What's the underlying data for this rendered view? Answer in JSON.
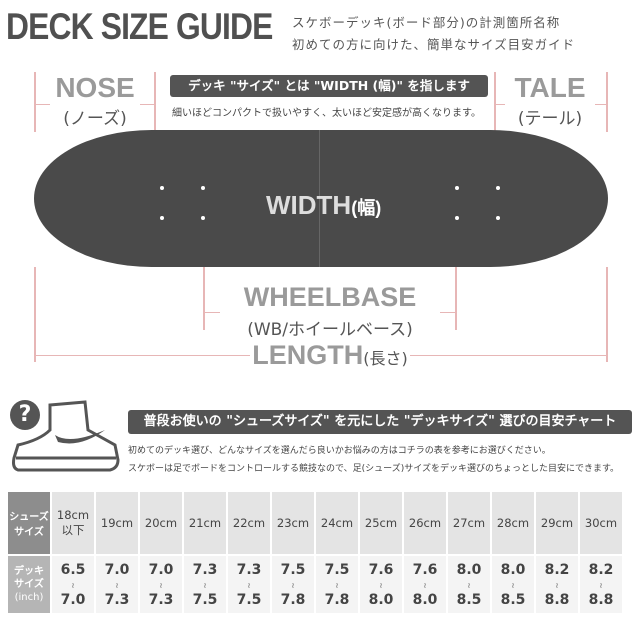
{
  "title": "DECK SIZE GUIDE",
  "handnote": [
    "スケボーデッキ(ボード部分)の計測箇所名称",
    "初めての方に向けた、簡単なサイズ目安ガイド"
  ],
  "nose": {
    "en": "NOSE",
    "jp": "(ノーズ)"
  },
  "tale": {
    "en": "TALE",
    "jp": "(テール)"
  },
  "width_banner": "デッキ \"サイズ\" とは \"WIDTH (幅)\" を指します",
  "width_note": "細いほどコンパクトで扱いやすく、太いほど安定感が高くなります。",
  "width_label": {
    "en": "WIDTH",
    "jp": "(幅)"
  },
  "wheelbase": {
    "en": "WHEELBASE",
    "jp": "(WB/ホイールベース)"
  },
  "length": {
    "en": "LENGTH",
    "jp": "(長さ)"
  },
  "question_icon": "?",
  "chart_banner": "普段お使いの \"シューズサイズ\" を元にした \"デッキサイズ\" 選びの目安チャート",
  "chart_notes": [
    "初めてのデッキ選び、どんなサイズを選んだら良いかお悩みの方はコチラの表を参考にお選びください。",
    "スケボーは足でボードをコントロールする競技なので、足(シューズ)サイズをデッキ選びのちょっとした目安にできます。"
  ],
  "table": {
    "row1_header": [
      "シューズ",
      "サイズ"
    ],
    "row2_header": [
      "デッキ",
      "サイズ",
      "(inch)"
    ],
    "tilde": "≀",
    "shoe": [
      [
        "18cm",
        "以下"
      ],
      [
        "19cm"
      ],
      [
        "20cm"
      ],
      [
        "21cm"
      ],
      [
        "22cm"
      ],
      [
        "23cm"
      ],
      [
        "24cm"
      ],
      [
        "25cm"
      ],
      [
        "26cm"
      ],
      [
        "27cm"
      ],
      [
        "28cm"
      ],
      [
        "29cm"
      ],
      [
        "30cm"
      ]
    ],
    "deck": [
      [
        "6.5",
        "7.0"
      ],
      [
        "7.0",
        "7.3"
      ],
      [
        "7.0",
        "7.3"
      ],
      [
        "7.3",
        "7.5"
      ],
      [
        "7.3",
        "7.5"
      ],
      [
        "7.5",
        "7.8"
      ],
      [
        "7.5",
        "7.8"
      ],
      [
        "7.6",
        "8.0"
      ],
      [
        "7.6",
        "8.0"
      ],
      [
        "8.0",
        "8.5"
      ],
      [
        "8.0",
        "8.5"
      ],
      [
        "8.2",
        "8.8"
      ],
      [
        "8.2",
        "8.8"
      ]
    ]
  }
}
